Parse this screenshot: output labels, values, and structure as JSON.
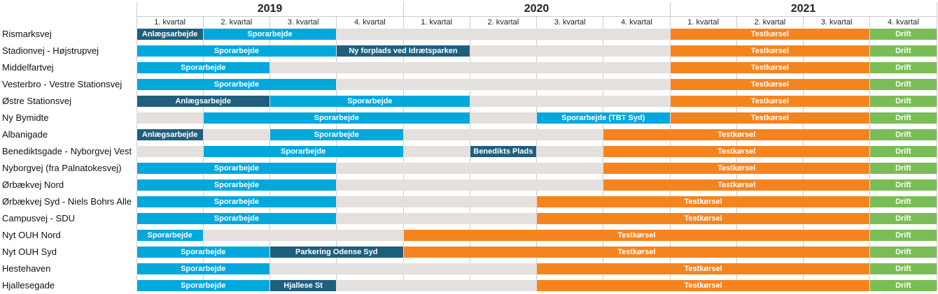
{
  "chart_data": {
    "type": "gantt",
    "years": [
      "2019",
      "2020",
      "2021"
    ],
    "quarters": [
      "1. kvartal",
      "2. kvartal",
      "3. kvartal",
      "4. kvartal"
    ],
    "colors": {
      "Anlaeg": "#1f5f7e",
      "Spor": "#00a8dc",
      "Test": "#f5841f",
      "Drift": "#7abd56"
    },
    "rows": [
      {
        "name": "Rismarksvej",
        "tasks": [
          {
            "label": "Anlægsarbejde",
            "start": 0,
            "end": 1,
            "kind": "Anlaeg"
          },
          {
            "label": "Sporarbejde",
            "start": 1,
            "end": 3,
            "kind": "Spor"
          },
          {
            "label": "Testkørsel",
            "start": 8,
            "end": 11,
            "kind": "Test"
          },
          {
            "label": "Drift",
            "start": 11,
            "end": 12,
            "kind": "Drift"
          }
        ]
      },
      {
        "name": "Stadionvej - Højstrupvej",
        "tasks": [
          {
            "label": "Sporarbejde",
            "start": 0,
            "end": 3,
            "kind": "Spor"
          },
          {
            "label": "Ny forplads ved Idrætsparken",
            "start": 3,
            "end": 5,
            "kind": "Anlaeg"
          },
          {
            "label": "Testkørsel",
            "start": 8,
            "end": 11,
            "kind": "Test"
          },
          {
            "label": "Drift",
            "start": 11,
            "end": 12,
            "kind": "Drift"
          }
        ]
      },
      {
        "name": "Middelfartvej",
        "tasks": [
          {
            "label": "Sporarbejde",
            "start": 0,
            "end": 2,
            "kind": "Spor"
          },
          {
            "label": "Testkørsel",
            "start": 8,
            "end": 11,
            "kind": "Test"
          },
          {
            "label": "Drift",
            "start": 11,
            "end": 12,
            "kind": "Drift"
          }
        ]
      },
      {
        "name": "Vesterbro - Vestre Stationsvej",
        "tasks": [
          {
            "label": "Sporarbejde",
            "start": 0,
            "end": 3,
            "kind": "Spor"
          },
          {
            "label": "Testkørsel",
            "start": 8,
            "end": 11,
            "kind": "Test"
          },
          {
            "label": "Drift",
            "start": 11,
            "end": 12,
            "kind": "Drift"
          }
        ]
      },
      {
        "name": "Østre Stationsvej",
        "tasks": [
          {
            "label": "Anlægsarbejde",
            "start": 0,
            "end": 2,
            "kind": "Anlaeg"
          },
          {
            "label": "Sporarbejde",
            "start": 2,
            "end": 5,
            "kind": "Spor"
          },
          {
            "label": "Testkørsel",
            "start": 8,
            "end": 11,
            "kind": "Test"
          },
          {
            "label": "Drift",
            "start": 11,
            "end": 12,
            "kind": "Drift"
          }
        ]
      },
      {
        "name": "Ny Bymidte",
        "tasks": [
          {
            "label": "Sporarbejde",
            "start": 1,
            "end": 5,
            "kind": "Spor"
          },
          {
            "label": "Sporarbejde (TBT Syd)",
            "start": 6,
            "end": 8,
            "kind": "Spor"
          },
          {
            "label": "Testkørsel",
            "start": 8,
            "end": 11,
            "kind": "Test"
          },
          {
            "label": "Drift",
            "start": 11,
            "end": 12,
            "kind": "Drift"
          }
        ]
      },
      {
        "name": "Albanigade",
        "tasks": [
          {
            "label": "Anlægsarbejde",
            "start": 0,
            "end": 1,
            "kind": "Anlaeg"
          },
          {
            "label": "Sporarbejde",
            "start": 2,
            "end": 4,
            "kind": "Spor"
          },
          {
            "label": "Testkørsel",
            "start": 7,
            "end": 11,
            "kind": "Test"
          },
          {
            "label": "Drift",
            "start": 11,
            "end": 12,
            "kind": "Drift"
          }
        ]
      },
      {
        "name": "Benediktsgade - Nyborgvej Vest",
        "tasks": [
          {
            "label": "Sporarbejde",
            "start": 1,
            "end": 4,
            "kind": "Spor"
          },
          {
            "label": "Benedikts Plads",
            "start": 5,
            "end": 6,
            "kind": "Anlaeg"
          },
          {
            "label": "Testkørsel",
            "start": 7,
            "end": 11,
            "kind": "Test"
          },
          {
            "label": "Drift",
            "start": 11,
            "end": 12,
            "kind": "Drift"
          }
        ]
      },
      {
        "name": "Nyborgvej (fra Palnatokesvej)",
        "tasks": [
          {
            "label": "Sporarbejde",
            "start": 0,
            "end": 3,
            "kind": "Spor"
          },
          {
            "label": "Testkørsel",
            "start": 7,
            "end": 11,
            "kind": "Test"
          },
          {
            "label": "Drift",
            "start": 11,
            "end": 12,
            "kind": "Drift"
          }
        ]
      },
      {
        "name": "Ørbækvej Nord",
        "tasks": [
          {
            "label": "Sporarbejde",
            "start": 0,
            "end": 3,
            "kind": "Spor"
          },
          {
            "label": "Testkørsel",
            "start": 7,
            "end": 11,
            "kind": "Test"
          },
          {
            "label": "Drift",
            "start": 11,
            "end": 12,
            "kind": "Drift"
          }
        ]
      },
      {
        "name": "Ørbækvej Syd - Niels Bohrs Alle",
        "tasks": [
          {
            "label": "Sporarbejde",
            "start": 0,
            "end": 3,
            "kind": "Spor"
          },
          {
            "label": "Testkørsel",
            "start": 6,
            "end": 11,
            "kind": "Test"
          },
          {
            "label": "Drift",
            "start": 11,
            "end": 12,
            "kind": "Drift"
          }
        ]
      },
      {
        "name": "Campusvej - SDU",
        "tasks": [
          {
            "label": "Sporarbejde",
            "start": 0,
            "end": 3,
            "kind": "Spor"
          },
          {
            "label": "Testkørsel",
            "start": 6,
            "end": 11,
            "kind": "Test"
          },
          {
            "label": "Drift",
            "start": 11,
            "end": 12,
            "kind": "Drift"
          }
        ]
      },
      {
        "name": "Nyt OUH Nord",
        "tasks": [
          {
            "label": "Sporarbejde",
            "start": 0,
            "end": 1,
            "kind": "Spor"
          },
          {
            "label": "Testkørsel",
            "start": 4,
            "end": 11,
            "kind": "Test"
          },
          {
            "label": "Drift",
            "start": 11,
            "end": 12,
            "kind": "Drift"
          }
        ]
      },
      {
        "name": "Nyt OUH Syd",
        "tasks": [
          {
            "label": "Sporarbejde",
            "start": 0,
            "end": 2,
            "kind": "Spor"
          },
          {
            "label": "Parkering Odense Syd",
            "start": 2,
            "end": 4,
            "kind": "Anlaeg"
          },
          {
            "label": "Testkørsel",
            "start": 4,
            "end": 11,
            "kind": "Test"
          },
          {
            "label": "Drift",
            "start": 11,
            "end": 12,
            "kind": "Drift"
          }
        ]
      },
      {
        "name": "Hestehaven",
        "tasks": [
          {
            "label": "Sporarbejde",
            "start": 0,
            "end": 2,
            "kind": "Spor"
          },
          {
            "label": "Testkørsel",
            "start": 6,
            "end": 11,
            "kind": "Test"
          },
          {
            "label": "Drift",
            "start": 11,
            "end": 12,
            "kind": "Drift"
          }
        ]
      },
      {
        "name": "Hjallesegade",
        "tasks": [
          {
            "label": "Sporarbejde",
            "start": 0,
            "end": 2,
            "kind": "Spor"
          },
          {
            "label": "Hjallese St",
            "start": 2,
            "end": 3,
            "kind": "Anlaeg"
          },
          {
            "label": "Testkørsel",
            "start": 6,
            "end": 11,
            "kind": "Test"
          },
          {
            "label": "Drift",
            "start": 11,
            "end": 12,
            "kind": "Drift"
          }
        ]
      }
    ]
  }
}
